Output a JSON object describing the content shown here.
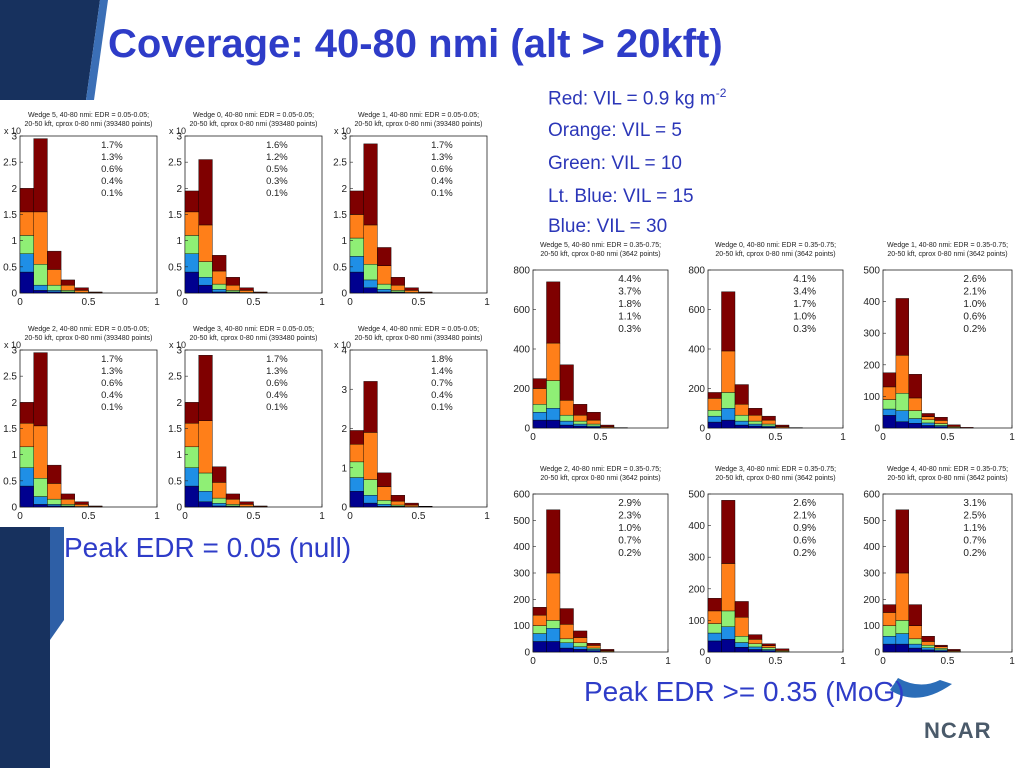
{
  "slide": {
    "title": "Coverage: 40-80 nmi (alt > 20kft)",
    "legend": [
      {
        "text": "Red: VIL = 0.9 kg m",
        "sup": "-2"
      },
      {
        "text": "Orange: VIL = 5"
      },
      {
        "text": "Green: VIL = 10"
      },
      {
        "text": "Lt. Blue: VIL = 15"
      },
      {
        "text": "Blue: VIL = 30"
      }
    ],
    "caption_left": "Peak EDR = 0.05 (null)",
    "caption_right": "Peak EDR >= 0.35 (MoG)",
    "brand": "NCAR"
  },
  "colors": {
    "title": "#2e3cc8",
    "dark_red": "#7f0000",
    "orange": "#ff7f19",
    "green": "#8fef75",
    "light_blue": "#1f8fe6",
    "blue": "#00008f"
  },
  "chart_data": [
    {
      "type": "bar",
      "stacked": true,
      "title": "Wedge 5, 40-80 nmi: EDR = 0.05-0.05;",
      "subtitle": "20-50 kft, cprox 0-80 nmi  (393480 points)",
      "multiplier": "x 10",
      "ylim": [
        0,
        3
      ],
      "yticks": [
        0,
        0.5,
        1,
        1.5,
        2,
        2.5,
        3
      ],
      "xlim": [
        0,
        1
      ],
      "xticks": [
        0,
        0.5,
        1
      ],
      "x": [
        0.05,
        0.15,
        0.25,
        0.35,
        0.45,
        0.55
      ],
      "percentages": [
        "1.7%",
        "1.3%",
        "0.6%",
        "0.4%",
        "0.1%"
      ],
      "series": [
        {
          "values": [
            0.4,
            0.05,
            0.02,
            0.01,
            0,
            0
          ]
        },
        {
          "values": [
            0.35,
            0.1,
            0.03,
            0.01,
            0,
            0
          ]
        },
        {
          "values": [
            0.35,
            0.4,
            0.1,
            0.03,
            0.01,
            0
          ]
        },
        {
          "values": [
            0.45,
            1.0,
            0.3,
            0.1,
            0.04,
            0.01
          ]
        },
        {
          "values": [
            0.45,
            1.4,
            0.35,
            0.1,
            0.05,
            0.01
          ]
        }
      ]
    },
    {
      "type": "bar",
      "stacked": true,
      "title": "Wedge 0, 40-80 nmi: EDR = 0.05-0.05;",
      "subtitle": "20-50 kft, cprox 0-80 nmi  (393480 points)",
      "multiplier": "x 10",
      "ylim": [
        0,
        3
      ],
      "yticks": [
        0,
        0.5,
        1,
        1.5,
        2,
        2.5,
        3
      ],
      "xlim": [
        0,
        1
      ],
      "xticks": [
        0,
        0.5,
        1
      ],
      "x": [
        0.05,
        0.15,
        0.25,
        0.35,
        0.45,
        0.55
      ],
      "percentages": [
        "1.6%",
        "1.2%",
        "0.5%",
        "0.3%",
        "0.1%"
      ],
      "series": [
        {
          "values": [
            0.4,
            0.15,
            0.02,
            0.01,
            0,
            0
          ]
        },
        {
          "values": [
            0.35,
            0.15,
            0.05,
            0.01,
            0,
            0
          ]
        },
        {
          "values": [
            0.35,
            0.3,
            0.1,
            0.03,
            0.01,
            0
          ]
        },
        {
          "values": [
            0.45,
            0.7,
            0.25,
            0.1,
            0.04,
            0.01
          ]
        },
        {
          "values": [
            0.4,
            1.25,
            0.3,
            0.15,
            0.05,
            0.01
          ]
        }
      ]
    },
    {
      "type": "bar",
      "stacked": true,
      "title": "Wedge 1, 40-80 nmi: EDR = 0.05-0.05;",
      "subtitle": "20-50 kft, cprox 0-80 nmi  (393480 points)",
      "multiplier": "x 10",
      "ylim": [
        0,
        3
      ],
      "yticks": [
        0,
        0.5,
        1,
        1.5,
        2,
        2.5,
        3
      ],
      "xlim": [
        0,
        1
      ],
      "xticks": [
        0,
        0.5,
        1
      ],
      "x": [
        0.05,
        0.15,
        0.25,
        0.35,
        0.45,
        0.55
      ],
      "percentages": [
        "1.7%",
        "1.3%",
        "0.6%",
        "0.4%",
        "0.1%"
      ],
      "series": [
        {
          "values": [
            0.4,
            0.1,
            0.02,
            0.01,
            0,
            0
          ]
        },
        {
          "values": [
            0.3,
            0.15,
            0.05,
            0.01,
            0,
            0
          ]
        },
        {
          "values": [
            0.35,
            0.3,
            0.1,
            0.03,
            0.01,
            0
          ]
        },
        {
          "values": [
            0.45,
            0.75,
            0.35,
            0.1,
            0.04,
            0.01
          ]
        },
        {
          "values": [
            0.45,
            1.55,
            0.35,
            0.15,
            0.05,
            0.01
          ]
        }
      ]
    },
    {
      "type": "bar",
      "stacked": true,
      "title": "Wedge 2, 40-80 nmi: EDR = 0.05-0.05;",
      "subtitle": "20-50 kft, cprox 0-80 nmi  (393480 points)",
      "multiplier": "x 10",
      "ylim": [
        0,
        3
      ],
      "yticks": [
        0,
        0.5,
        1,
        1.5,
        2,
        2.5,
        3
      ],
      "xlim": [
        0,
        1
      ],
      "xticks": [
        0,
        0.5,
        1
      ],
      "x": [
        0.05,
        0.15,
        0.25,
        0.35,
        0.45,
        0.55
      ],
      "percentages": [
        "1.7%",
        "1.3%",
        "0.6%",
        "0.4%",
        "0.1%"
      ],
      "series": [
        {
          "values": [
            0.4,
            0.05,
            0.02,
            0.01,
            0,
            0
          ]
        },
        {
          "values": [
            0.35,
            0.15,
            0.03,
            0.01,
            0,
            0
          ]
        },
        {
          "values": [
            0.4,
            0.35,
            0.1,
            0.03,
            0.01,
            0
          ]
        },
        {
          "values": [
            0.45,
            1.0,
            0.3,
            0.1,
            0.04,
            0.01
          ]
        },
        {
          "values": [
            0.4,
            1.4,
            0.35,
            0.1,
            0.05,
            0.01
          ]
        }
      ]
    },
    {
      "type": "bar",
      "stacked": true,
      "title": "Wedge 3, 40-80 nmi: EDR = 0.05-0.05;",
      "subtitle": "20-50 kft, cprox 0-80 nmi  (393480 points)",
      "multiplier": "x 10",
      "ylim": [
        0,
        3
      ],
      "yticks": [
        0,
        0.5,
        1,
        1.5,
        2,
        2.5,
        3
      ],
      "xlim": [
        0,
        1
      ],
      "xticks": [
        0,
        0.5,
        1
      ],
      "x": [
        0.05,
        0.15,
        0.25,
        0.35,
        0.45,
        0.55
      ],
      "percentages": [
        "1.7%",
        "1.3%",
        "0.6%",
        "0.4%",
        "0.1%"
      ],
      "series": [
        {
          "values": [
            0.4,
            0.1,
            0.02,
            0.01,
            0,
            0
          ]
        },
        {
          "values": [
            0.35,
            0.2,
            0.05,
            0.01,
            0,
            0
          ]
        },
        {
          "values": [
            0.4,
            0.35,
            0.1,
            0.03,
            0.01,
            0
          ]
        },
        {
          "values": [
            0.45,
            1.0,
            0.3,
            0.1,
            0.04,
            0.01
          ]
        },
        {
          "values": [
            0.4,
            1.25,
            0.3,
            0.1,
            0.05,
            0.01
          ]
        }
      ]
    },
    {
      "type": "bar",
      "stacked": true,
      "title": "Wedge 4, 40-80 nmi: EDR = 0.05-0.05;",
      "subtitle": "20-50 kft, cprox 0-80 nmi  (393480 points)",
      "multiplier": "x 10",
      "ylim": [
        0,
        4
      ],
      "yticks": [
        0,
        1,
        2,
        3,
        4
      ],
      "xlim": [
        0,
        1
      ],
      "xticks": [
        0,
        0.5,
        1
      ],
      "x": [
        0.05,
        0.15,
        0.25,
        0.35,
        0.45,
        0.55
      ],
      "percentages": [
        "1.8%",
        "1.4%",
        "0.7%",
        "0.4%",
        "0.1%"
      ],
      "series": [
        {
          "values": [
            0.4,
            0.1,
            0.02,
            0.01,
            0,
            0
          ]
        },
        {
          "values": [
            0.35,
            0.2,
            0.05,
            0.01,
            0,
            0
          ]
        },
        {
          "values": [
            0.4,
            0.4,
            0.1,
            0.03,
            0.01,
            0
          ]
        },
        {
          "values": [
            0.45,
            1.2,
            0.35,
            0.1,
            0.04,
            0.01
          ]
        },
        {
          "values": [
            0.35,
            1.3,
            0.35,
            0.15,
            0.05,
            0.01
          ]
        }
      ]
    },
    {
      "type": "bar",
      "stacked": true,
      "title": "Wedge 5, 40-80 nmi: EDR = 0.35-0.75;",
      "subtitle": "20-50 kft, cprox 0-80 nmi  (3642 points)",
      "ylim": [
        0,
        800
      ],
      "yticks": [
        0,
        200,
        400,
        600,
        800
      ],
      "xlim": [
        0,
        1
      ],
      "xticks": [
        0,
        0.5
      ],
      "x": [
        0.05,
        0.15,
        0.25,
        0.35,
        0.45,
        0.55,
        0.65
      ],
      "percentages": [
        "4.4%",
        "3.7%",
        "1.8%",
        "1.1%",
        "0.3%"
      ],
      "series": [
        {
          "values": [
            40,
            40,
            15,
            10,
            5,
            0,
            0
          ]
        },
        {
          "values": [
            40,
            60,
            20,
            10,
            5,
            0,
            0
          ]
        },
        {
          "values": [
            40,
            140,
            30,
            15,
            10,
            2,
            0
          ]
        },
        {
          "values": [
            80,
            190,
            75,
            30,
            20,
            5,
            0
          ]
        },
        {
          "values": [
            50,
            310,
            180,
            55,
            40,
            8,
            2
          ]
        }
      ]
    },
    {
      "type": "bar",
      "stacked": true,
      "title": "Wedge 0, 40-80 nmi: EDR = 0.35-0.75;",
      "subtitle": "20-50 kft, cprox 0-80 nmi  (3642 points)",
      "ylim": [
        0,
        800
      ],
      "yticks": [
        0,
        200,
        400,
        600,
        800
      ],
      "xlim": [
        0,
        1
      ],
      "xticks": [
        0,
        0.5,
        1
      ],
      "x": [
        0.05,
        0.15,
        0.25,
        0.35,
        0.45,
        0.55,
        0.65
      ],
      "percentages": [
        "4.1%",
        "3.4%",
        "1.7%",
        "1.0%",
        "0.3%"
      ],
      "series": [
        {
          "values": [
            30,
            40,
            15,
            10,
            5,
            0,
            0
          ]
        },
        {
          "values": [
            30,
            60,
            20,
            10,
            5,
            0,
            0
          ]
        },
        {
          "values": [
            30,
            80,
            30,
            15,
            10,
            2,
            0
          ]
        },
        {
          "values": [
            60,
            210,
            55,
            30,
            20,
            5,
            0
          ]
        },
        {
          "values": [
            30,
            300,
            100,
            35,
            20,
            8,
            2
          ]
        }
      ]
    },
    {
      "type": "bar",
      "stacked": true,
      "title": "Wedge 1, 40-80 nmi: EDR = 0.35-0.75;",
      "subtitle": "20-50 kft, cprox 0-80 nmi  (3642 points)",
      "ylim": [
        0,
        500
      ],
      "yticks": [
        0,
        100,
        200,
        300,
        400,
        500
      ],
      "xlim": [
        0,
        1
      ],
      "xticks": [
        0,
        0.5,
        1
      ],
      "x": [
        0.05,
        0.15,
        0.25,
        0.35,
        0.45,
        0.55,
        0.65
      ],
      "percentages": [
        "2.6%",
        "2.1%",
        "1.0%",
        "0.6%",
        "0.2%"
      ],
      "series": [
        {
          "values": [
            40,
            20,
            15,
            8,
            4,
            0,
            0
          ]
        },
        {
          "values": [
            20,
            35,
            15,
            8,
            4,
            0,
            0
          ]
        },
        {
          "values": [
            30,
            55,
            25,
            10,
            6,
            2,
            0
          ]
        },
        {
          "values": [
            40,
            120,
            40,
            10,
            10,
            3,
            0
          ]
        },
        {
          "values": [
            45,
            180,
            75,
            10,
            10,
            5,
            2
          ]
        }
      ]
    },
    {
      "type": "bar",
      "stacked": true,
      "title": "Wedge 2, 40-80 nmi: EDR = 0.35-0.75;",
      "subtitle": "20-50 kft, cprox 0-80 nmi  (3642 points)",
      "ylim": [
        0,
        600
      ],
      "yticks": [
        0,
        100,
        200,
        300,
        400,
        500,
        600
      ],
      "xlim": [
        0,
        1
      ],
      "xticks": [
        0,
        0.5,
        1
      ],
      "x": [
        0.05,
        0.15,
        0.25,
        0.35,
        0.45,
        0.55,
        0.65
      ],
      "percentages": [
        "2.9%",
        "2.3%",
        "1.0%",
        "0.7%",
        "0.2%"
      ],
      "series": [
        {
          "values": [
            40,
            40,
            15,
            10,
            5,
            0,
            0
          ]
        },
        {
          "values": [
            30,
            50,
            20,
            10,
            5,
            0,
            0
          ]
        },
        {
          "values": [
            30,
            30,
            15,
            15,
            5,
            2,
            0
          ]
        },
        {
          "values": [
            40,
            180,
            55,
            20,
            10,
            3,
            0
          ]
        },
        {
          "values": [
            30,
            240,
            60,
            25,
            8,
            5,
            0
          ]
        }
      ]
    },
    {
      "type": "bar",
      "stacked": true,
      "title": "Wedge 3, 40-80 nmi: EDR = 0.35-0.75;",
      "subtitle": "20-50 kft, cprox 0-80 nmi  (3642 points)",
      "ylim": [
        0,
        500
      ],
      "yticks": [
        0,
        100,
        200,
        300,
        400,
        500
      ],
      "xlim": [
        0,
        1
      ],
      "xticks": [
        0,
        0.5,
        1
      ],
      "x": [
        0.05,
        0.15,
        0.25,
        0.35,
        0.45,
        0.55,
        0.65
      ],
      "percentages": [
        "2.6%",
        "2.1%",
        "0.9%",
        "0.6%",
        "0.2%"
      ],
      "series": [
        {
          "values": [
            35,
            40,
            15,
            8,
            4,
            0,
            0
          ]
        },
        {
          "values": [
            25,
            40,
            15,
            8,
            4,
            0,
            0
          ]
        },
        {
          "values": [
            30,
            50,
            20,
            10,
            6,
            2,
            0
          ]
        },
        {
          "values": [
            40,
            150,
            60,
            14,
            6,
            3,
            0
          ]
        },
        {
          "values": [
            40,
            200,
            50,
            15,
            6,
            5,
            0
          ]
        }
      ]
    },
    {
      "type": "bar",
      "stacked": true,
      "title": "Wedge 4, 40-80 nmi: EDR = 0.35-0.75;",
      "subtitle": "20-50 kft, cprox 0-80 nmi  (3642 points)",
      "ylim": [
        0,
        600
      ],
      "yticks": [
        0,
        100,
        200,
        300,
        400,
        500,
        600
      ],
      "xlim": [
        0,
        1
      ],
      "xticks": [
        0,
        0.5,
        1
      ],
      "x": [
        0.05,
        0.15,
        0.25,
        0.35,
        0.45,
        0.55,
        0.65
      ],
      "percentages": [
        "3.1%",
        "2.5%",
        "1.1%",
        "0.7%",
        "0.2%"
      ],
      "series": [
        {
          "values": [
            30,
            30,
            15,
            8,
            4,
            0,
            0
          ]
        },
        {
          "values": [
            30,
            40,
            15,
            8,
            4,
            0,
            0
          ]
        },
        {
          "values": [
            40,
            50,
            20,
            10,
            6,
            2,
            0
          ]
        },
        {
          "values": [
            50,
            180,
            50,
            14,
            6,
            3,
            0
          ]
        },
        {
          "values": [
            30,
            240,
            80,
            20,
            6,
            5,
            0
          ]
        }
      ]
    }
  ]
}
